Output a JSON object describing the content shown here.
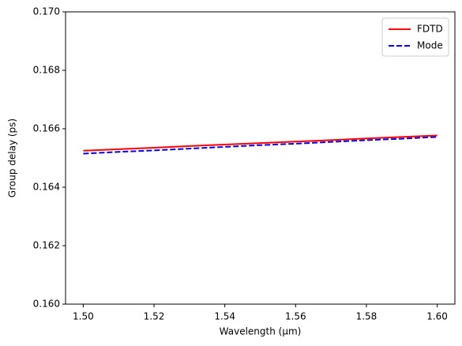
{
  "chart_data": {
    "type": "line",
    "xlabel": "Wavelength (µm)",
    "ylabel": "Group delay (ps)",
    "x": [
      1.5,
      1.51,
      1.52,
      1.53,
      1.54,
      1.55,
      1.56,
      1.57,
      1.58,
      1.59,
      1.6
    ],
    "series": [
      {
        "name": "FDTD",
        "color": "#ff0000",
        "linestyle": "solid",
        "values": [
          0.16525,
          0.1653,
          0.16535,
          0.16541,
          0.16546,
          0.16551,
          0.16556,
          0.16561,
          0.16567,
          0.16572,
          0.16577
        ]
      },
      {
        "name": "Mode",
        "color": "#0000ff",
        "linestyle": "dashed",
        "values": [
          0.16515,
          0.16521,
          0.16526,
          0.16532,
          0.16538,
          0.16544,
          0.16549,
          0.16555,
          0.16561,
          0.16566,
          0.16572
        ]
      }
    ],
    "xlim": [
      1.495,
      1.605
    ],
    "xticks": [
      {
        "value": 1.5,
        "label": "1.50"
      },
      {
        "value": 1.52,
        "label": "1.52"
      },
      {
        "value": 1.54,
        "label": "1.54"
      },
      {
        "value": 1.56,
        "label": "1.56"
      },
      {
        "value": 1.58,
        "label": "1.58"
      },
      {
        "value": 1.6,
        "label": "1.60"
      }
    ],
    "ylim": [
      0.16,
      0.17
    ],
    "yticks": [
      {
        "value": 0.16,
        "label": "0.160"
      },
      {
        "value": 0.162,
        "label": "0.162"
      },
      {
        "value": 0.164,
        "label": "0.164"
      },
      {
        "value": 0.166,
        "label": "0.166"
      },
      {
        "value": 0.168,
        "label": "0.168"
      },
      {
        "value": 0.17,
        "label": "0.170"
      }
    ],
    "legend": "upper right"
  }
}
